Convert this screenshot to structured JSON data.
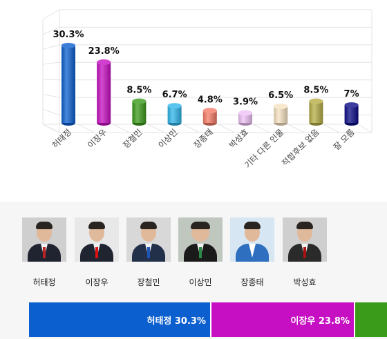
{
  "chart_data": {
    "type": "bar",
    "categories": [
      "허태정",
      "이장우",
      "장철민",
      "이상민",
      "장종태",
      "박성효",
      "기타 다른 인물",
      "적합후보 없음",
      "잘 모름"
    ],
    "values": [
      30.3,
      23.8,
      8.5,
      6.7,
      4.8,
      3.9,
      6.5,
      8.5,
      7
    ],
    "value_labels": [
      "30.3%",
      "23.8%",
      "8.5%",
      "6.7%",
      "4.8%",
      "3.9%",
      "6.5%",
      "8.5%",
      "7%"
    ],
    "colors": [
      "#0b5fcf",
      "#c60fc2",
      "#3a9a1a",
      "#2fb5ea",
      "#f47b66",
      "#eec0f5",
      "#f5e2c2",
      "#b6ad45",
      "#0b0c86"
    ],
    "ylim": [
      0,
      35
    ],
    "grid": true,
    "style": "3d-cylinder"
  },
  "candidates": [
    {
      "name": "허태정"
    },
    {
      "name": "이장우"
    },
    {
      "name": "장철민"
    },
    {
      "name": "이상민"
    },
    {
      "name": "장종태"
    },
    {
      "name": "박성효"
    }
  ],
  "bottom_bar": [
    {
      "label": "허태정 30.3%",
      "value": 30.3,
      "color": "#0b5fcf"
    },
    {
      "label": "이장우 23.8%",
      "value": 23.8,
      "color": "#c60fc2"
    },
    {
      "label": "",
      "value": 8.5,
      "color": "#3a9a1a"
    }
  ]
}
